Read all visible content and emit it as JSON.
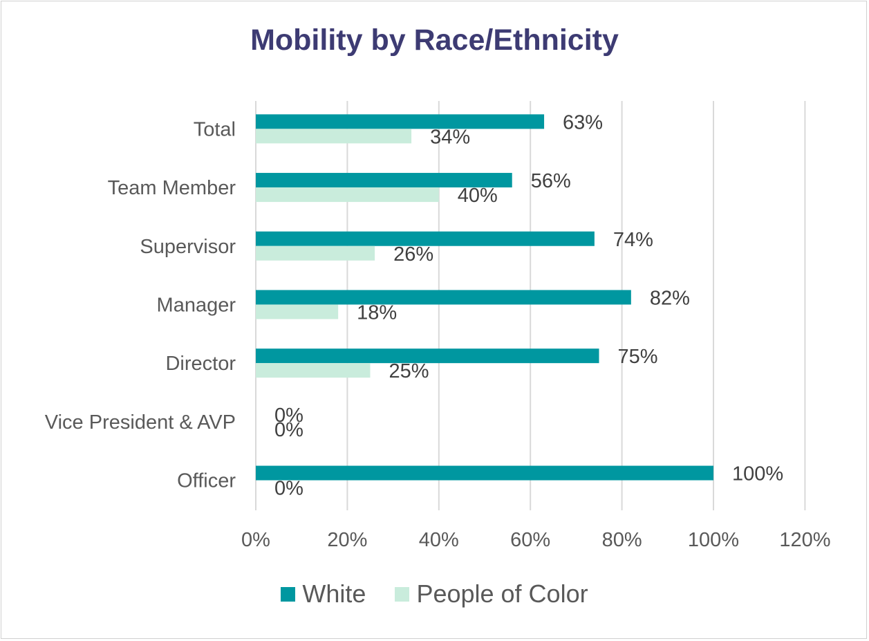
{
  "chart_data": {
    "type": "bar",
    "orientation": "horizontal",
    "title": "Mobility by Race/Ethnicity",
    "categories": [
      "Total",
      "Team Member",
      "Supervisor ",
      "Manager",
      "Director",
      "Vice President & AVP",
      "Officer "
    ],
    "series": [
      {
        "name": "White",
        "color": "#0097a0",
        "values": [
          63,
          56,
          74,
          82,
          75,
          0,
          100
        ],
        "labels": [
          "63%",
          "56%",
          "74%",
          "82%",
          "75%",
          "0%",
          "100%"
        ]
      },
      {
        "name": "People of Color",
        "color": "#c9ecdc",
        "values": [
          34,
          40,
          26,
          18,
          25,
          0,
          0
        ],
        "labels": [
          "34%",
          "40%",
          "26%",
          "18%",
          "25%",
          "0%",
          "0%"
        ]
      }
    ],
    "x_ticks": [
      "0%",
      "20%",
      "40%",
      "60%",
      "80%",
      "100%",
      "120%"
    ],
    "xlim": [
      0,
      120
    ],
    "grid": "vertical",
    "legend_position": "bottom"
  }
}
